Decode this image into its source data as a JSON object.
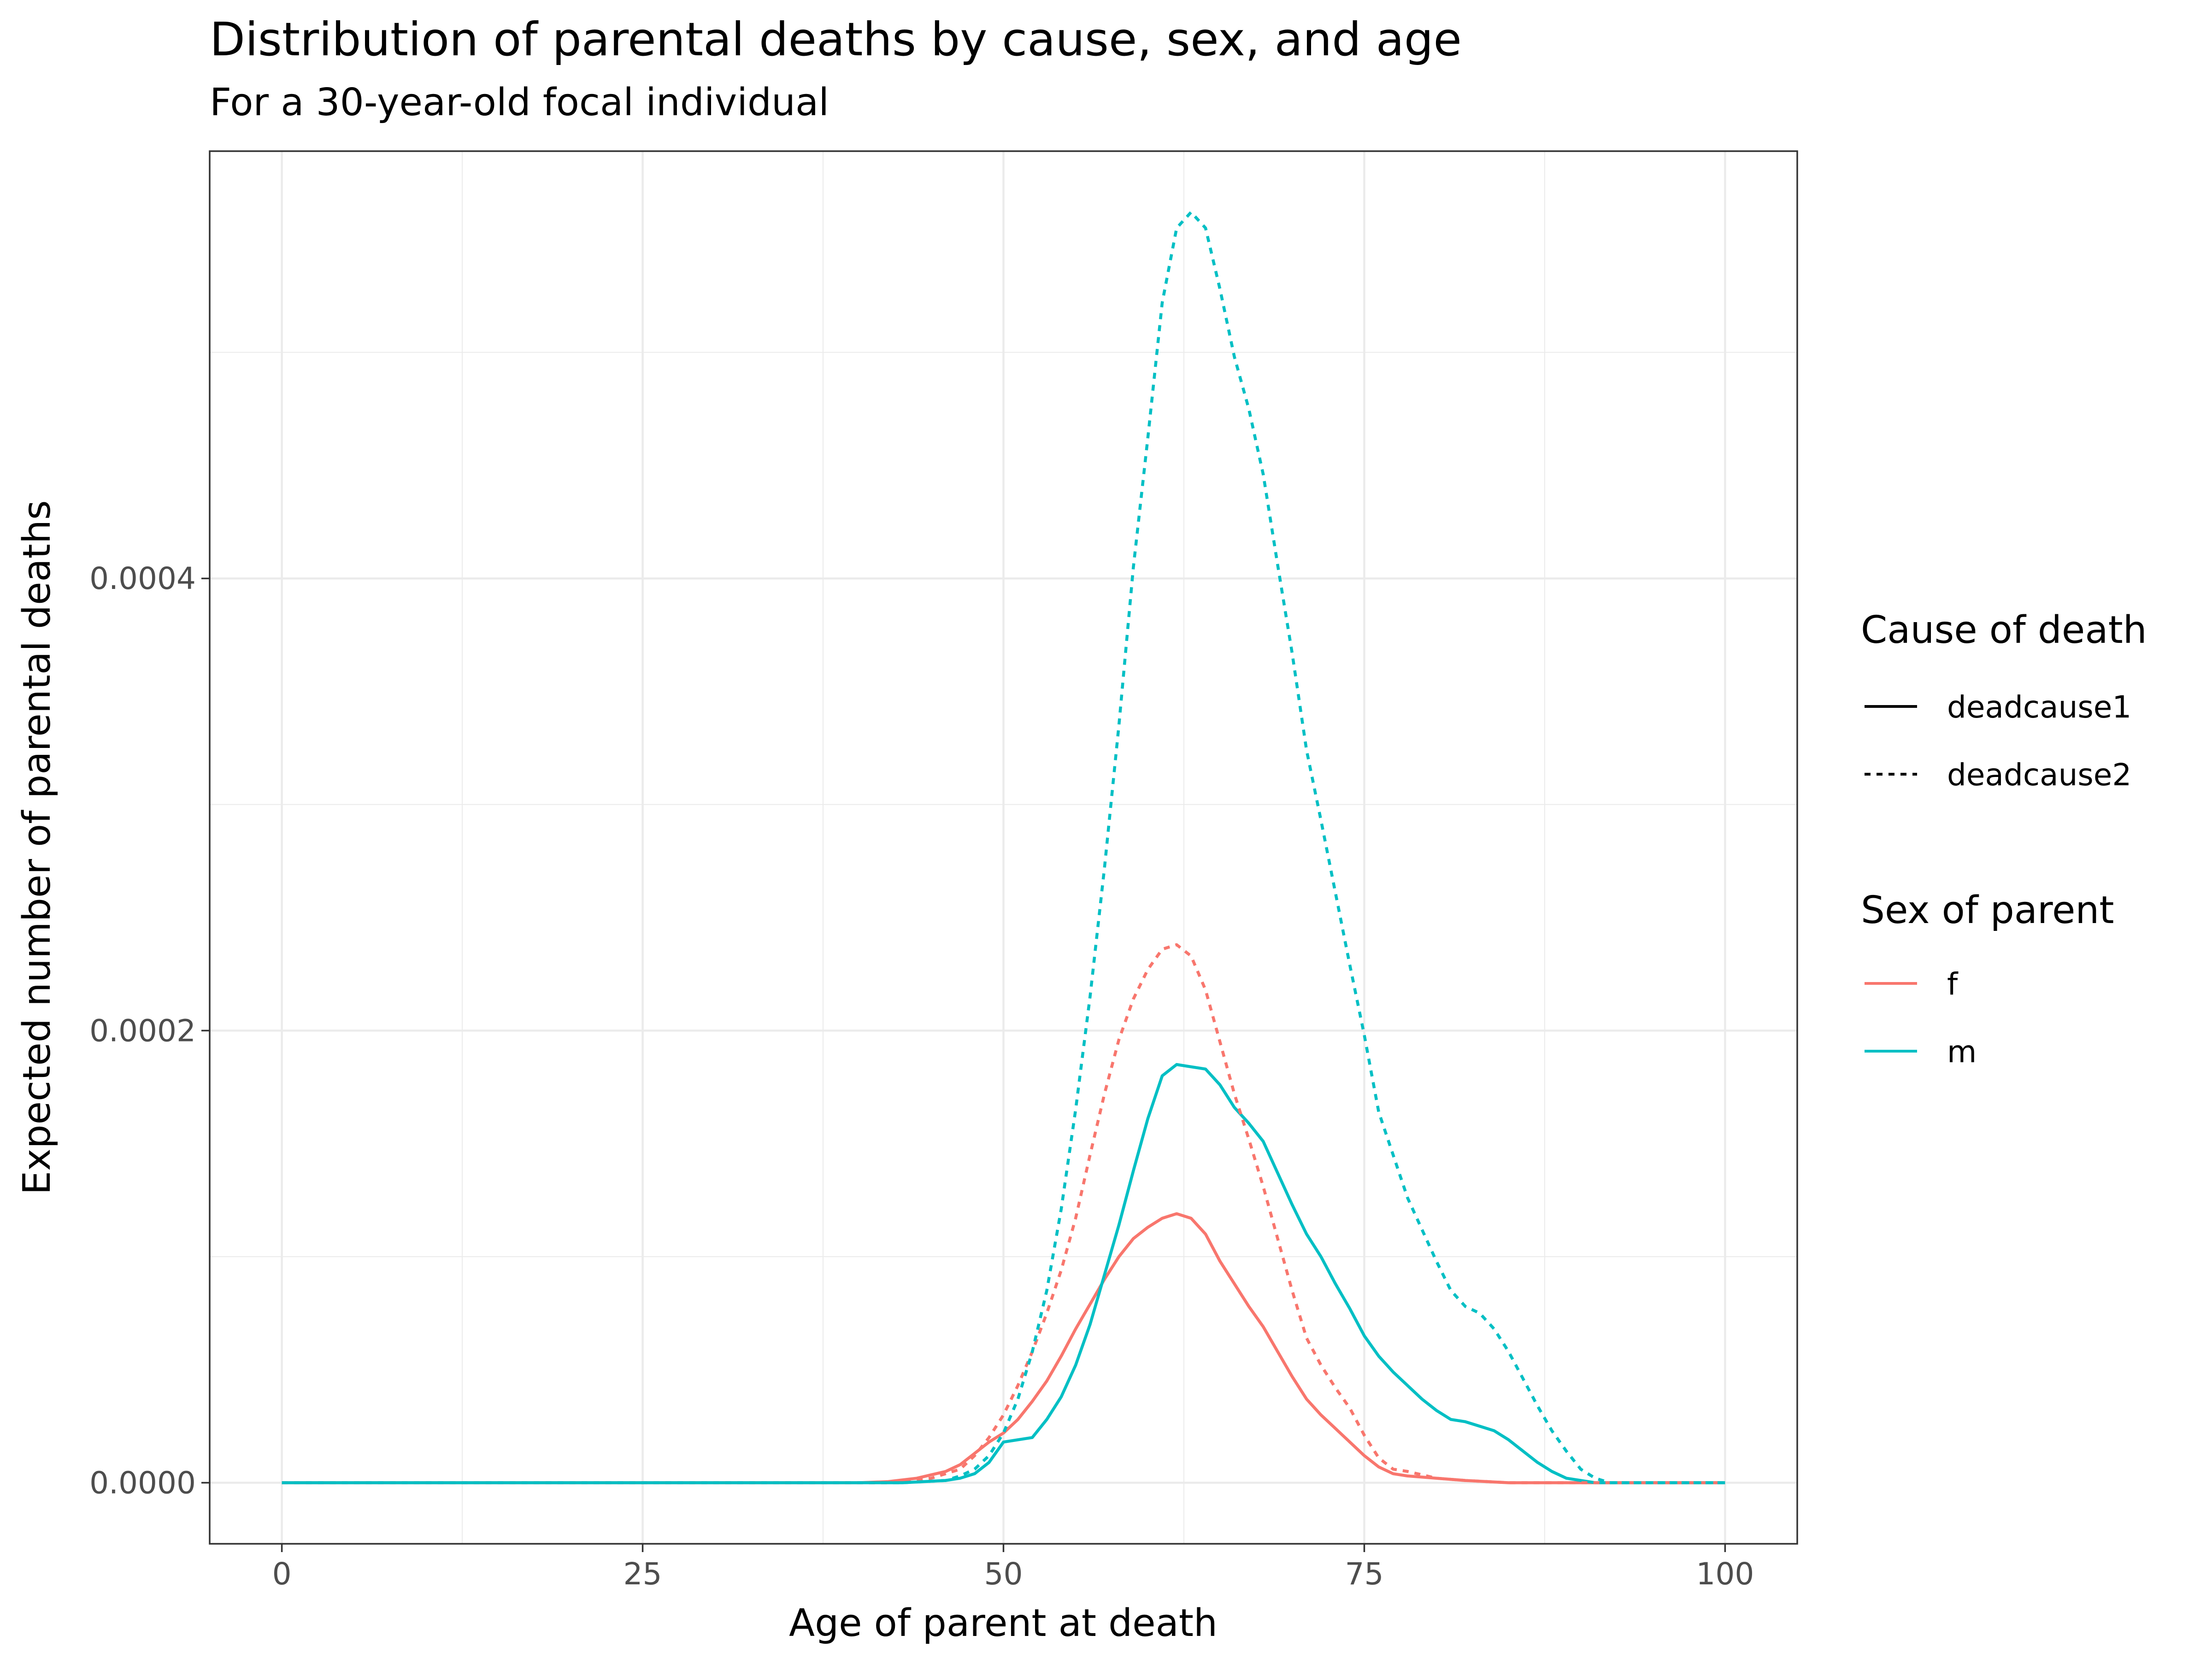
{
  "chart_data": {
    "type": "line",
    "title": "Distribution of parental deaths by cause, sex, and age",
    "subtitle": "For a 30-year-old focal individual",
    "xlabel": "Age of parent at death",
    "ylabel": "Expected number of parental deaths",
    "xlim": [
      -5,
      105
    ],
    "ylim": [
      -2.7e-05,
      0.000589
    ],
    "x_ticks": [
      0,
      25,
      50,
      75,
      100
    ],
    "x_tick_labels": [
      "0",
      "25",
      "50",
      "75",
      "100"
    ],
    "y_ticks": [
      0,
      0.0002,
      0.0004
    ],
    "y_tick_labels": [
      "0.0000",
      "0.0002",
      "0.0004"
    ],
    "grid": true,
    "legend_placement": "right",
    "legend": {
      "linetype": {
        "title": "Cause of death",
        "entries": [
          {
            "label": "deadcause1",
            "dash": "solid"
          },
          {
            "label": "deadcause2",
            "dash": "dashed"
          }
        ]
      },
      "color": {
        "title": "Sex of parent",
        "entries": [
          {
            "label": "f",
            "color": "#F8766D"
          },
          {
            "label": "m",
            "color": "#00BFC4"
          }
        ]
      }
    },
    "series": [
      {
        "name": "f",
        "cause": "deadcause1",
        "color": "#F8766D",
        "dash": "solid",
        "x": [
          0,
          40,
          42,
          44,
          46,
          47,
          48,
          49,
          50,
          51,
          52,
          53,
          54,
          55,
          56,
          57,
          58,
          59,
          60,
          61,
          62,
          63,
          64,
          65,
          66,
          67,
          68,
          69,
          70,
          71,
          72,
          73,
          74,
          75,
          76,
          77,
          78,
          80,
          82,
          85,
          90,
          100
        ],
        "values": [
          0,
          0,
          5e-07,
          2e-06,
          5e-06,
          8e-06,
          1.3e-05,
          1.8e-05,
          2.2e-05,
          2.8e-05,
          3.6e-05,
          4.5e-05,
          5.6e-05,
          6.8e-05,
          7.9e-05,
          9e-05,
          0.0001,
          0.000108,
          0.000113,
          0.000117,
          0.000119,
          0.000117,
          0.00011,
          9.8e-05,
          8.8e-05,
          7.8e-05,
          6.9e-05,
          5.8e-05,
          4.7e-05,
          3.7e-05,
          3e-05,
          2.4e-05,
          1.8e-05,
          1.2e-05,
          7e-06,
          4e-06,
          3e-06,
          2e-06,
          1e-06,
          0,
          0,
          0
        ]
      },
      {
        "name": "m",
        "cause": "deadcause1",
        "color": "#00BFC4",
        "dash": "solid",
        "x": [
          0,
          43,
          46,
          47,
          48,
          49,
          50,
          51,
          52,
          53,
          54,
          55,
          56,
          57,
          58,
          59,
          60,
          61,
          62,
          63,
          64,
          65,
          66,
          67,
          68,
          69,
          70,
          71,
          72,
          73,
          74,
          75,
          76,
          77,
          78,
          79,
          80,
          81,
          82,
          83,
          84,
          85,
          86,
          87,
          88,
          89,
          90,
          91,
          100
        ],
        "values": [
          0,
          0,
          1e-06,
          2e-06,
          4e-06,
          9e-06,
          1.8e-05,
          1.9e-05,
          2e-05,
          2.8e-05,
          3.8e-05,
          5.2e-05,
          7e-05,
          9.2e-05,
          0.000114,
          0.000138,
          0.000161,
          0.00018,
          0.000185,
          0.000184,
          0.000183,
          0.000176,
          0.000166,
          0.000159,
          0.000151,
          0.000137,
          0.000123,
          0.00011,
          0.0001,
          8.8e-05,
          7.7e-05,
          6.5e-05,
          5.6e-05,
          4.9e-05,
          4.3e-05,
          3.7e-05,
          3.2e-05,
          2.8e-05,
          2.7e-05,
          2.5e-05,
          2.3e-05,
          1.9e-05,
          1.4e-05,
          9e-06,
          5e-06,
          2e-06,
          1e-06,
          0,
          0
        ]
      },
      {
        "name": "f",
        "cause": "deadcause2",
        "color": "#F8766D",
        "dash": "dashed",
        "x": [
          0,
          42,
          45,
          47,
          48,
          49,
          50,
          51,
          52,
          53,
          54,
          55,
          56,
          57,
          58,
          59,
          60,
          61,
          62,
          63,
          64,
          65,
          66,
          67,
          68,
          69,
          70,
          71,
          72,
          73,
          74,
          75,
          76,
          77,
          78,
          80,
          82,
          85,
          90,
          100
        ],
        "values": [
          0,
          0,
          2e-06,
          6e-06,
          1.2e-05,
          2e-05,
          3e-05,
          4.3e-05,
          5.8e-05,
          7.5e-05,
          9.4e-05,
          0.000117,
          0.000145,
          0.000172,
          0.000196,
          0.000214,
          0.000227,
          0.000236,
          0.000238,
          0.000233,
          0.000218,
          0.000195,
          0.000172,
          0.000152,
          0.000131,
          0.000108,
          8.5e-05,
          6.4e-05,
          5.2e-05,
          4.2e-05,
          3.3e-05,
          2.1e-05,
          1.1e-05,
          6e-06,
          5e-06,
          2e-06,
          1e-06,
          0,
          0,
          0
        ]
      },
      {
        "name": "m",
        "cause": "deadcause2",
        "color": "#00BFC4",
        "dash": "dashed",
        "x": [
          0,
          43,
          46,
          47,
          48,
          49,
          50,
          51,
          52,
          53,
          54,
          55,
          56,
          57,
          58,
          59,
          60,
          61,
          62,
          63,
          64,
          65,
          66,
          67,
          68,
          69,
          70,
          71,
          72,
          73,
          74,
          75,
          76,
          77,
          78,
          79,
          80,
          81,
          82,
          83,
          84,
          85,
          86,
          87,
          88,
          89,
          90,
          91,
          92,
          100
        ],
        "values": [
          0,
          0,
          1e-06,
          3e-06,
          6e-06,
          1.2e-05,
          2.2e-05,
          3.7e-05,
          5.8e-05,
          8.5e-05,
          0.000121,
          0.000165,
          0.000215,
          0.000272,
          0.000335,
          0.000405,
          0.000462,
          0.000522,
          0.000555,
          0.000562,
          0.000555,
          0.000528,
          0.000498,
          0.000475,
          0.000446,
          0.000406,
          0.000367,
          0.000324,
          0.000293,
          0.000261,
          0.000229,
          0.000198,
          0.000164,
          0.000145,
          0.000126,
          0.000112,
          9.8e-05,
          8.5e-05,
          7.8e-05,
          7.5e-05,
          6.8e-05,
          5.8e-05,
          4.6e-05,
          3.4e-05,
          2.3e-05,
          1.4e-05,
          6e-06,
          2e-06,
          0,
          0
        ]
      }
    ]
  }
}
